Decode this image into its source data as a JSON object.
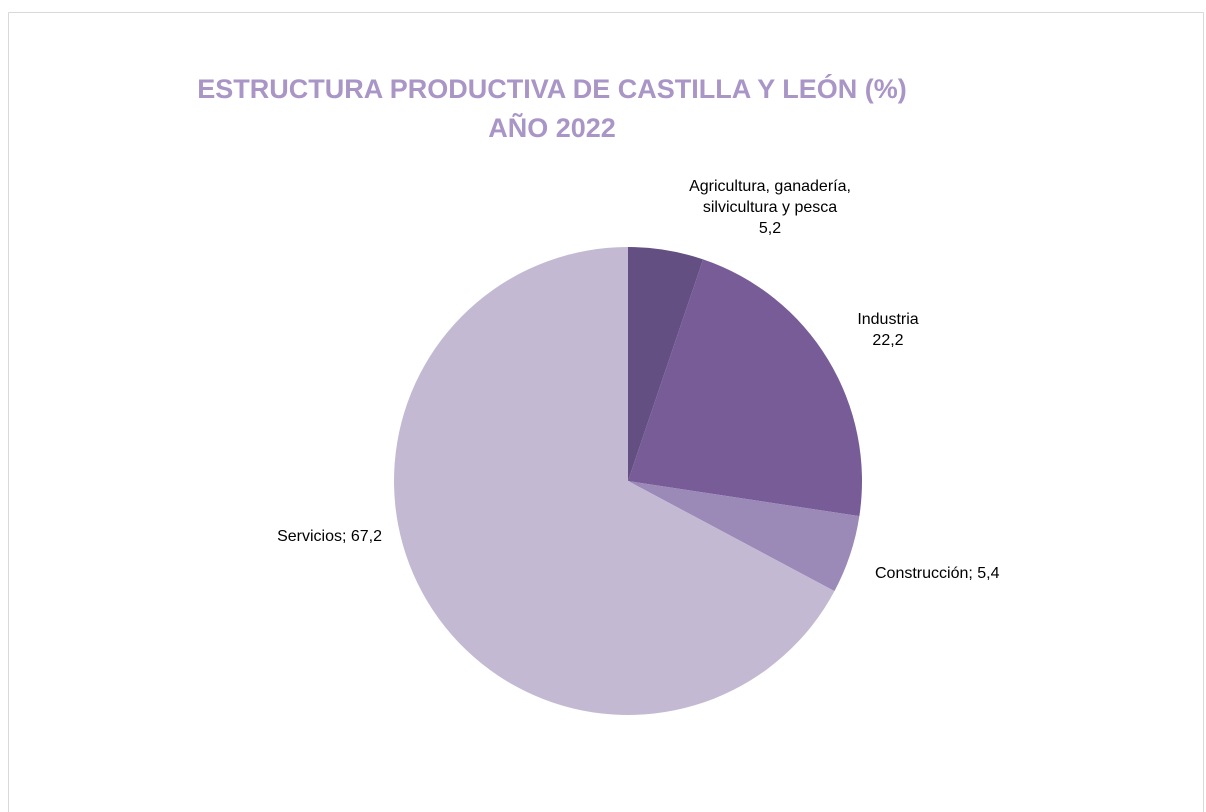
{
  "chart_data": {
    "type": "pie",
    "title": "ESTRUCTURA PRODUCTIVA DE CASTILLA Y LEÓN (%)",
    "subtitle": "AÑO 2022",
    "categories": [
      "Agricultura, ganadería,\nsilvicultura y pesca",
      "Industria",
      "Construcción",
      "Servicios"
    ],
    "values": [
      5.2,
      22.2,
      5.4,
      67.2
    ],
    "value_labels": [
      "5,2",
      "22,2",
      "5,4",
      "67,2"
    ],
    "label_separator": "; ",
    "colors": [
      "#634f81",
      "#775c98",
      "#9b89b8",
      "#c3b9d2"
    ]
  }
}
